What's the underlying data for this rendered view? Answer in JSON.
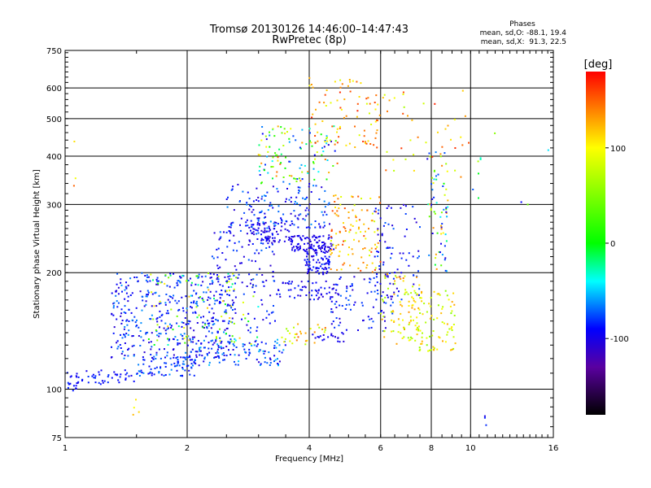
{
  "chart_data": {
    "type": "scatter",
    "title": "Tromsø 20130126 14:46:00–14:47:43",
    "subtitle": "RwPretec (8p)",
    "xlabel": "Frequency [MHz]",
    "ylabel": "Stationary phase Virtual Height [km]",
    "x_scale": "log",
    "y_scale": "log",
    "xlim": [
      1,
      16
    ],
    "ylim": [
      75,
      750
    ],
    "x_ticks": [
      1,
      2,
      4,
      6,
      8,
      10,
      16
    ],
    "y_ticks": [
      75,
      100,
      200,
      300,
      400,
      500,
      600,
      750
    ],
    "x_tick_labels": [
      "1",
      "2",
      "4",
      "6",
      "8",
      "10",
      "16"
    ],
    "y_tick_labels": [
      "75",
      "100",
      "200",
      "300",
      "400",
      "500",
      "600",
      "750"
    ],
    "grid": true,
    "stats": {
      "heading": "Phases",
      "line_o": "mean, sd,O: -88.1, 19.4",
      "line_x": "mean, sd,X:  91.3, 22.5"
    },
    "colorbar": {
      "label": "[deg]",
      "range": [
        -180,
        180
      ],
      "ticks": [
        100,
        0,
        -100
      ],
      "tick_labels": [
        "100",
        "0",
        "-100"
      ]
    },
    "colors": {
      "stop_m180": "#000000",
      "stop_m130": "#5a00a0",
      "stop_m90": "#0000ff",
      "stop_m40": "#00ffff",
      "stop_0": "#00ff00",
      "stop_100": "#ffff00",
      "stop_140": "#ff8000",
      "stop_180": "#ff0000"
    },
    "clusters": [
      {
        "f": [
          1.0,
          1.08
        ],
        "h": [
          98,
          112
        ],
        "phase": [
          -100,
          -80
        ],
        "n": 20
      },
      {
        "f": [
          1.1,
          1.5
        ],
        "h": [
          103,
          112
        ],
        "phase": [
          -100,
          -80
        ],
        "n": 40
      },
      {
        "f": [
          1.5,
          2.1
        ],
        "h": [
          108,
          122
        ],
        "phase": [
          -100,
          -60
        ],
        "n": 80
      },
      {
        "f": [
          2.0,
          3.5
        ],
        "h": [
          115,
          135
        ],
        "phase": [
          -110,
          -50
        ],
        "n": 120
      },
      {
        "f": [
          1.3,
          2.6
        ],
        "h": [
          120,
          200
        ],
        "phase": [
          -110,
          -60
        ],
        "n": 420
      },
      {
        "f": [
          1.6,
          3.0
        ],
        "h": [
          130,
          200
        ],
        "phase": [
          -40,
          120
        ],
        "n": 90
      },
      {
        "f": [
          2.3,
          3.3
        ],
        "h": [
          140,
          260
        ],
        "phase": [
          -110,
          -70
        ],
        "n": 140
      },
      {
        "f": [
          2.8,
          3.6
        ],
        "h": [
          240,
          270
        ],
        "phase": [
          -110,
          -90
        ],
        "n": 70
      },
      {
        "f": [
          3.6,
          4.6
        ],
        "h": [
          225,
          250
        ],
        "phase": [
          -110,
          -90
        ],
        "n": 110
      },
      {
        "f": [
          3.9,
          4.5
        ],
        "h": [
          198,
          225
        ],
        "phase": [
          -110,
          -80
        ],
        "n": 70
      },
      {
        "f": [
          3.3,
          4.7
        ],
        "h": [
          170,
          190
        ],
        "phase": [
          -110,
          -80
        ],
        "n": 60
      },
      {
        "f": [
          2.5,
          4.5
        ],
        "h": [
          260,
          340
        ],
        "phase": [
          -110,
          -60
        ],
        "n": 150
      },
      {
        "f": [
          3.0,
          4.7
        ],
        "h": [
          340,
          480
        ],
        "phase": [
          -110,
          160
        ],
        "n": 120
      },
      {
        "f": [
          4.0,
          6.0
        ],
        "h": [
          420,
          650
        ],
        "phase": [
          80,
          170
        ],
        "n": 80
      },
      {
        "f": [
          4.5,
          6.0
        ],
        "h": [
          200,
          320
        ],
        "phase": [
          80,
          160
        ],
        "n": 110
      },
      {
        "f": [
          4.5,
          6.5
        ],
        "h": [
          140,
          200
        ],
        "phase": [
          -110,
          -70
        ],
        "n": 90
      },
      {
        "f": [
          5.8,
          7.5
        ],
        "h": [
          170,
          300
        ],
        "phase": [
          -110,
          -70
        ],
        "n": 80
      },
      {
        "f": [
          6.0,
          7.6
        ],
        "h": [
          130,
          200
        ],
        "phase": [
          60,
          140
        ],
        "n": 70
      },
      {
        "f": [
          7.0,
          9.2
        ],
        "h": [
          125,
          180
        ],
        "phase": [
          50,
          130
        ],
        "n": 100
      },
      {
        "f": [
          7.8,
          8.8
        ],
        "h": [
          200,
          420
        ],
        "phase": [
          -110,
          140
        ],
        "n": 70
      },
      {
        "f": [
          6.0,
          10.0
        ],
        "h": [
          350,
          600
        ],
        "phase": [
          60,
          170
        ],
        "n": 40
      },
      {
        "f": [
          4.0,
          5.0
        ],
        "h": [
          132,
          140
        ],
        "phase": [
          -110,
          -90
        ],
        "n": 20
      },
      {
        "f": [
          3.4,
          4.4
        ],
        "h": [
          130,
          150
        ],
        "phase": [
          60,
          150
        ],
        "n": 30
      },
      {
        "f": [
          10.0,
          16.0
        ],
        "h": [
          300,
          620
        ],
        "phase": [
          -110,
          140
        ],
        "n": 10
      },
      {
        "f": [
          1.4,
          1.6
        ],
        "h": [
          85,
          95
        ],
        "phase": [
          90,
          140
        ],
        "n": 4
      },
      {
        "f": [
          10.8,
          11.0
        ],
        "h": [
          80,
          87
        ],
        "phase": [
          -110,
          -80
        ],
        "n": 3
      },
      {
        "f": [
          1.05,
          1.1
        ],
        "h": [
          300,
          500
        ],
        "phase": [
          90,
          150
        ],
        "n": 3
      }
    ]
  }
}
